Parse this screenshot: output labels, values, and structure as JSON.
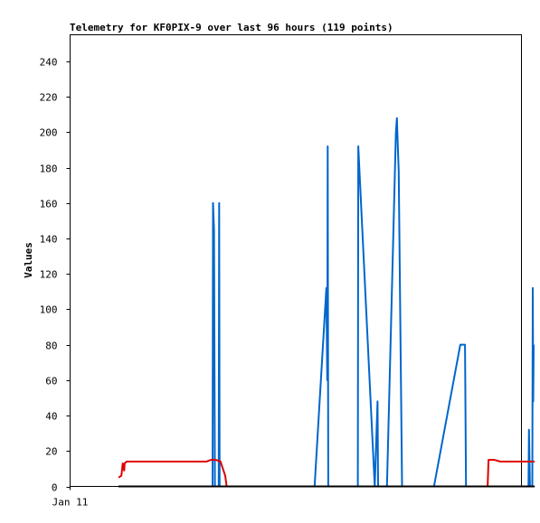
{
  "chart_data": {
    "type": "line",
    "title": "Telemetry for KF0PIX-9 over last 96 hours (119 points)",
    "ylabel": "Values",
    "xlabel": "",
    "x_tick_labels": [
      "Jan 11"
    ],
    "y_ticks": [
      0,
      20,
      40,
      60,
      80,
      100,
      120,
      140,
      160,
      180,
      200,
      220,
      240
    ],
    "ylim": [
      0,
      255
    ],
    "xlim": [
      0,
      96
    ],
    "grid": false,
    "legend": "none",
    "series": [
      {
        "color": "#0066cc",
        "points": [
          [
            10.3,
            0
          ],
          [
            30.3,
            0
          ],
          [
            30.4,
            160
          ],
          [
            30.6,
            145
          ],
          [
            30.8,
            0
          ],
          [
            31.6,
            0
          ],
          [
            31.7,
            160
          ],
          [
            31.8,
            0
          ],
          [
            52.0,
            0
          ],
          [
            54.5,
            112
          ],
          [
            54.7,
            60
          ],
          [
            54.8,
            192
          ],
          [
            54.9,
            0
          ],
          [
            61.2,
            0
          ],
          [
            61.3,
            192
          ],
          [
            61.6,
            175
          ],
          [
            64.8,
            0
          ],
          [
            65.4,
            48
          ],
          [
            65.5,
            0
          ],
          [
            67.4,
            0
          ],
          [
            69.3,
            200
          ],
          [
            69.5,
            208
          ],
          [
            69.7,
            192
          ],
          [
            69.9,
            178
          ],
          [
            70.6,
            0
          ],
          [
            77.4,
            0
          ],
          [
            83.0,
            80
          ],
          [
            84.0,
            80
          ],
          [
            84.2,
            0
          ],
          [
            97.5,
            0
          ],
          [
            97.6,
            32
          ],
          [
            97.8,
            0
          ],
          [
            98.3,
            0
          ],
          [
            98.4,
            112
          ],
          [
            98.5,
            48
          ],
          [
            98.6,
            80
          ]
        ]
      },
      {
        "color": "#e00000",
        "points": [
          [
            10.3,
            5
          ],
          [
            10.9,
            6
          ],
          [
            11.2,
            13
          ],
          [
            11.5,
            9
          ],
          [
            11.6,
            13
          ],
          [
            12.0,
            14
          ],
          [
            14.0,
            14
          ],
          [
            29.0,
            14
          ],
          [
            30.0,
            15
          ],
          [
            31.0,
            15
          ],
          [
            32.0,
            14
          ],
          [
            33.0,
            6
          ],
          [
            33.3,
            0
          ],
          null,
          [
            88.8,
            0
          ],
          [
            89.0,
            15
          ],
          [
            90.2,
            15
          ],
          [
            91.5,
            14
          ],
          [
            98.2,
            14
          ],
          [
            98.8,
            14
          ]
        ]
      },
      {
        "color": "#000000",
        "points": [
          [
            10.3,
            0
          ],
          [
            98.8,
            0
          ]
        ]
      }
    ]
  }
}
